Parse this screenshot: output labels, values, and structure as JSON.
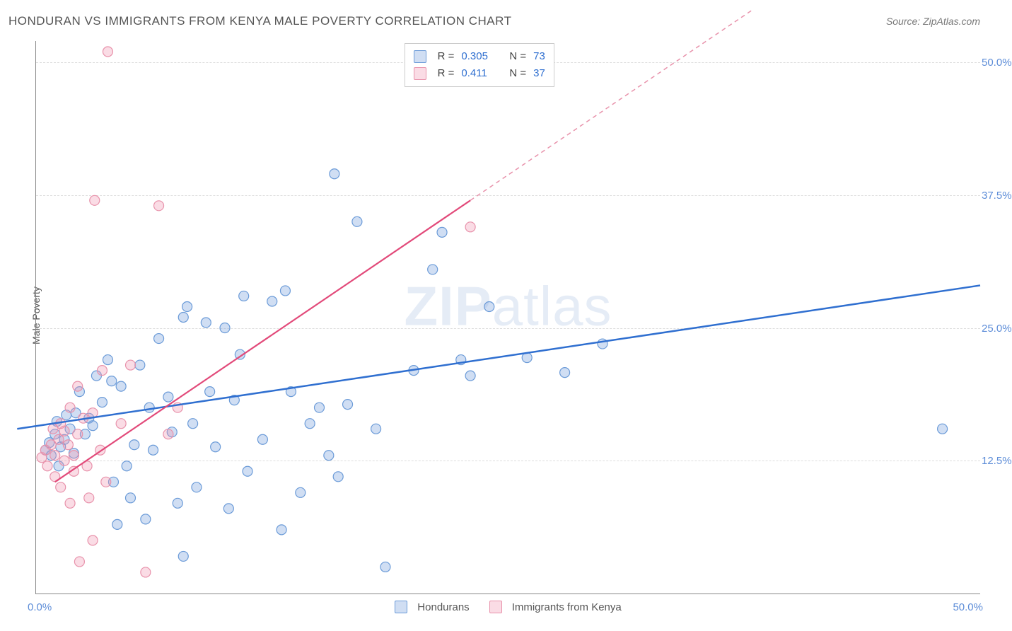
{
  "title": "HONDURAN VS IMMIGRANTS FROM KENYA MALE POVERTY CORRELATION CHART",
  "source": "Source: ZipAtlas.com",
  "watermark_zip": "ZIP",
  "watermark_atlas": "atlas",
  "y_axis_label": "Male Poverty",
  "chart": {
    "type": "scatter",
    "xlim": [
      0,
      50
    ],
    "ylim": [
      0,
      52
    ],
    "y_ticks": [
      {
        "v": 12.5,
        "label": "12.5%"
      },
      {
        "v": 25.0,
        "label": "25.0%"
      },
      {
        "v": 37.5,
        "label": "37.5%"
      },
      {
        "v": 50.0,
        "label": "50.0%"
      }
    ],
    "x_ticks": [
      {
        "v": 0,
        "label": "0.0%"
      },
      {
        "v": 50,
        "label": "50.0%"
      }
    ],
    "grid_color": "#dddddd",
    "background_color": "#ffffff",
    "marker_radius": 7,
    "marker_stroke_width": 1.2,
    "series": [
      {
        "name": "Hondurans",
        "fill": "rgba(120,160,220,0.35)",
        "stroke": "#6b9bd8",
        "trend": {
          "x1": -1,
          "y1": 15.5,
          "x2": 50,
          "y2": 29,
          "stroke": "#2f6fd0",
          "width": 2.5,
          "dash": ""
        },
        "R": "0.305",
        "N": "73",
        "points": [
          [
            0.5,
            13.5
          ],
          [
            0.7,
            14.2
          ],
          [
            0.8,
            13.0
          ],
          [
            1.0,
            15.0
          ],
          [
            1.1,
            16.2
          ],
          [
            1.2,
            12.0
          ],
          [
            1.3,
            13.8
          ],
          [
            1.8,
            15.5
          ],
          [
            1.5,
            14.5
          ],
          [
            2.1,
            17.0
          ],
          [
            2.0,
            13.2
          ],
          [
            2.6,
            15.0
          ],
          [
            2.8,
            16.5
          ],
          [
            2.3,
            19.0
          ],
          [
            3.0,
            15.8
          ],
          [
            3.2,
            20.5
          ],
          [
            3.5,
            18.0
          ],
          [
            1.6,
            16.8
          ],
          [
            3.8,
            22.0
          ],
          [
            4.0,
            20.0
          ],
          [
            4.1,
            10.5
          ],
          [
            4.3,
            6.5
          ],
          [
            4.5,
            19.5
          ],
          [
            4.8,
            12.0
          ],
          [
            5.0,
            9.0
          ],
          [
            5.2,
            14.0
          ],
          [
            5.5,
            21.5
          ],
          [
            5.8,
            7.0
          ],
          [
            6.0,
            17.5
          ],
          [
            6.2,
            13.5
          ],
          [
            6.5,
            24.0
          ],
          [
            7.0,
            18.5
          ],
          [
            7.2,
            15.2
          ],
          [
            7.5,
            8.5
          ],
          [
            7.8,
            26.0
          ],
          [
            7.8,
            3.5
          ],
          [
            8.0,
            27.0
          ],
          [
            8.3,
            16.0
          ],
          [
            8.5,
            10.0
          ],
          [
            9.0,
            25.5
          ],
          [
            9.2,
            19.0
          ],
          [
            9.5,
            13.8
          ],
          [
            10.0,
            25.0
          ],
          [
            10.2,
            8.0
          ],
          [
            10.5,
            18.2
          ],
          [
            10.8,
            22.5
          ],
          [
            11.0,
            28.0
          ],
          [
            11.2,
            11.5
          ],
          [
            12.0,
            14.5
          ],
          [
            12.5,
            27.5
          ],
          [
            13.0,
            6.0
          ],
          [
            13.2,
            28.5
          ],
          [
            13.5,
            19.0
          ],
          [
            14.0,
            9.5
          ],
          [
            14.5,
            16.0
          ],
          [
            15.0,
            17.5
          ],
          [
            15.5,
            13.0
          ],
          [
            15.8,
            39.5
          ],
          [
            16.0,
            11.0
          ],
          [
            16.5,
            17.8
          ],
          [
            17.0,
            35.0
          ],
          [
            18.0,
            15.5
          ],
          [
            18.5,
            2.5
          ],
          [
            20.0,
            21.0
          ],
          [
            21.0,
            30.5
          ],
          [
            21.5,
            34.0
          ],
          [
            22.5,
            22.0
          ],
          [
            23.0,
            20.5
          ],
          [
            24.0,
            27.0
          ],
          [
            26.0,
            22.2
          ],
          [
            28.0,
            20.8
          ],
          [
            30.0,
            23.5
          ],
          [
            48.0,
            15.5
          ]
        ]
      },
      {
        "name": "Immigrants from Kenya",
        "fill": "rgba(240,150,175,0.33)",
        "stroke": "#e892ab",
        "trend_solid": {
          "x1": 1,
          "y1": 10.5,
          "x2": 23,
          "y2": 37.0,
          "stroke": "#e24a7a",
          "width": 2.2
        },
        "trend_dash": {
          "x1": 23,
          "y1": 37.0,
          "x2": 38,
          "y2": 55.0,
          "stroke": "#e892ab",
          "width": 1.5,
          "dash": "6,5"
        },
        "R": "0.411",
        "N": "37",
        "points": [
          [
            0.3,
            12.8
          ],
          [
            0.5,
            13.5
          ],
          [
            0.6,
            12.0
          ],
          [
            0.8,
            14.0
          ],
          [
            0.9,
            15.5
          ],
          [
            1.0,
            13.0
          ],
          [
            1.0,
            11.0
          ],
          [
            1.2,
            14.5
          ],
          [
            1.3,
            16.0
          ],
          [
            1.3,
            10.0
          ],
          [
            1.5,
            12.5
          ],
          [
            1.5,
            15.3
          ],
          [
            1.7,
            14.0
          ],
          [
            1.8,
            17.5
          ],
          [
            1.8,
            8.5
          ],
          [
            2.0,
            13.0
          ],
          [
            2.0,
            11.5
          ],
          [
            2.2,
            15.0
          ],
          [
            2.2,
            19.5
          ],
          [
            2.3,
            3.0
          ],
          [
            2.5,
            16.5
          ],
          [
            2.7,
            12.0
          ],
          [
            2.8,
            9.0
          ],
          [
            3.0,
            17.0
          ],
          [
            3.0,
            5.0
          ],
          [
            3.1,
            37.0
          ],
          [
            3.4,
            13.5
          ],
          [
            3.5,
            21.0
          ],
          [
            3.7,
            10.5
          ],
          [
            3.8,
            51.0
          ],
          [
            4.5,
            16.0
          ],
          [
            5.0,
            21.5
          ],
          [
            5.8,
            2.0
          ],
          [
            6.5,
            36.5
          ],
          [
            7.0,
            15.0
          ],
          [
            7.5,
            17.5
          ],
          [
            23.0,
            34.5
          ]
        ]
      }
    ]
  },
  "legend_top": {
    "rows": [
      {
        "swatch_fill": "rgba(120,160,220,0.35)",
        "swatch_stroke": "#6b9bd8",
        "R": "0.305",
        "N": "73"
      },
      {
        "swatch_fill": "rgba(240,150,175,0.33)",
        "swatch_stroke": "#e892ab",
        "R": "0.411",
        "N": "37"
      }
    ],
    "r_eq": "R =",
    "n_eq": "N ="
  },
  "legend_bottom": [
    {
      "swatch_fill": "rgba(120,160,220,0.35)",
      "swatch_stroke": "#6b9bd8",
      "label": "Hondurans"
    },
    {
      "swatch_fill": "rgba(240,150,175,0.33)",
      "swatch_stroke": "#e892ab",
      "label": "Immigrants from Kenya"
    }
  ]
}
